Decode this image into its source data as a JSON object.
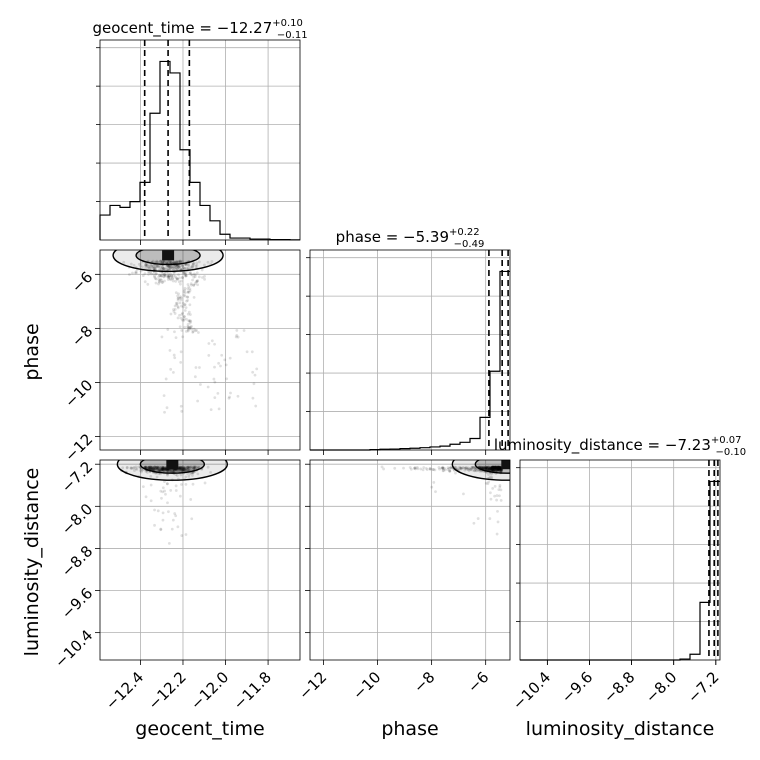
{
  "chart_data": {
    "type": "corner",
    "parameters": [
      {
        "key": "geocent_time",
        "label": "geocent_time",
        "range": [
          -12.59,
          -11.65
        ],
        "ticks": [
          -12.4,
          -12.2,
          -12.0,
          -11.8
        ]
      },
      {
        "key": "phase",
        "label": "phase",
        "range": [
          -12.5,
          -5.1
        ],
        "ticks": [
          -12,
          -10,
          -8,
          -6
        ]
      },
      {
        "key": "luminosity_distance",
        "label": "luminosity_distance",
        "range": [
          -10.92,
          -7.12
        ],
        "ticks": [
          -10.4,
          -9.6,
          -8.8,
          -8.0,
          -7.2
        ]
      }
    ],
    "titles": [
      {
        "name": "geocent_time",
        "value": "−12.27",
        "plus": "+0.10",
        "minus": "−0.11"
      },
      {
        "name": "phase",
        "value": "−5.39",
        "plus": "+0.22",
        "minus": "−0.49"
      },
      {
        "name": "luminosity_distance",
        "value": "−7.23",
        "plus": "+0.07",
        "minus": "−0.10"
      }
    ],
    "histograms": [
      {
        "param": "geocent_time",
        "bin_edges": [
          -12.59,
          -12.543,
          -12.496,
          -12.449,
          -12.402,
          -12.355,
          -12.308,
          -12.261,
          -12.214,
          -12.167,
          -12.12,
          -12.073,
          -12.026,
          -11.979,
          -11.932,
          -11.885,
          -11.838,
          -11.791,
          -11.744,
          -11.697,
          -11.65
        ],
        "counts": [
          0.13,
          0.18,
          0.17,
          0.2,
          0.3,
          0.66,
          0.93,
          0.87,
          0.47,
          0.3,
          0.18,
          0.1,
          0.03,
          0.01,
          0.01,
          0.005,
          0.005,
          0.002,
          0.002,
          0.001
        ],
        "quantiles": [
          -12.38,
          -12.27,
          -12.17
        ]
      },
      {
        "param": "phase",
        "bin_edges": [
          -12.5,
          -12.13,
          -11.76,
          -11.39,
          -11.02,
          -10.65,
          -10.28,
          -9.91,
          -9.54,
          -9.17,
          -8.8,
          -8.43,
          -8.06,
          -7.69,
          -7.32,
          -6.95,
          -6.58,
          -6.21,
          -5.84,
          -5.47,
          -5.1
        ],
        "counts": [
          0.0,
          0.0,
          0.0,
          0.0,
          0.0,
          0.0,
          0.002,
          0.004,
          0.005,
          0.007,
          0.009,
          0.012,
          0.016,
          0.02,
          0.03,
          0.04,
          0.06,
          0.17,
          0.41,
          0.93
        ],
        "quantiles": [
          -5.88,
          -5.39,
          -5.17
        ]
      },
      {
        "param": "luminosity_distance",
        "bin_edges": [
          -10.92,
          -10.73,
          -10.54,
          -10.35,
          -10.16,
          -9.97,
          -9.78,
          -9.59,
          -9.4,
          -9.21,
          -9.02,
          -8.83,
          -8.64,
          -8.45,
          -8.26,
          -8.07,
          -7.88,
          -7.69,
          -7.5,
          -7.31,
          -7.12
        ],
        "counts": [
          0.0,
          0.0,
          0.0,
          0.0,
          0.0,
          0.0,
          0.0,
          0.0,
          0.0,
          0.0,
          0.0,
          0.0,
          0.0,
          0.0,
          0.0,
          0.0,
          0.005,
          0.03,
          0.3,
          0.93
        ],
        "quantiles": [
          -7.33,
          -7.23,
          -7.16
        ]
      }
    ],
    "grid": true
  }
}
